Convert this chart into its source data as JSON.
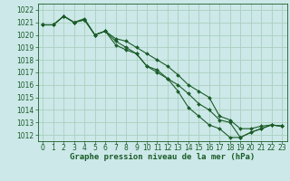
{
  "title": "Graphe pression niveau de la mer (hPa)",
  "bg_color": "#cce8e8",
  "grid_color": "#aacfbf",
  "line_color": "#1a5c28",
  "marker_color": "#1a5c28",
  "xlim": [
    -0.5,
    23.5
  ],
  "ylim": [
    1011.5,
    1022.5
  ],
  "yticks": [
    1012,
    1013,
    1014,
    1015,
    1016,
    1017,
    1018,
    1019,
    1020,
    1021,
    1022
  ],
  "xticks": [
    0,
    1,
    2,
    3,
    4,
    5,
    6,
    7,
    8,
    9,
    10,
    11,
    12,
    13,
    14,
    15,
    16,
    17,
    18,
    19,
    20,
    21,
    22,
    23
  ],
  "series": [
    [
      1020.8,
      1020.8,
      1021.5,
      1021.0,
      1021.3,
      1020.0,
      1020.3,
      1019.5,
      1019.0,
      1018.5,
      1017.5,
      1017.0,
      1016.5,
      1016.0,
      1015.3,
      1014.5,
      1014.0,
      1013.2,
      1013.0,
      1011.8,
      1012.2,
      1012.5,
      1012.8,
      1012.7
    ],
    [
      1020.8,
      1020.8,
      1021.5,
      1021.0,
      1021.2,
      1020.0,
      1020.3,
      1019.7,
      1019.5,
      1019.0,
      1018.5,
      1018.0,
      1017.5,
      1016.8,
      1016.0,
      1015.5,
      1015.0,
      1013.5,
      1013.2,
      1012.5,
      1012.5,
      1012.7,
      1012.8,
      1012.7
    ],
    [
      1020.8,
      1020.8,
      1021.5,
      1021.0,
      1021.2,
      1020.0,
      1020.3,
      1019.2,
      1018.8,
      1018.5,
      1017.5,
      1017.2,
      1016.5,
      1015.5,
      1014.2,
      1013.5,
      1012.8,
      1012.5,
      1011.8,
      1011.8,
      1012.2,
      1012.5,
      1012.8,
      1012.7
    ]
  ],
  "title_fontsize": 6.5,
  "tick_fontsize": 5.5,
  "xlabel_fontsize": 6.5
}
